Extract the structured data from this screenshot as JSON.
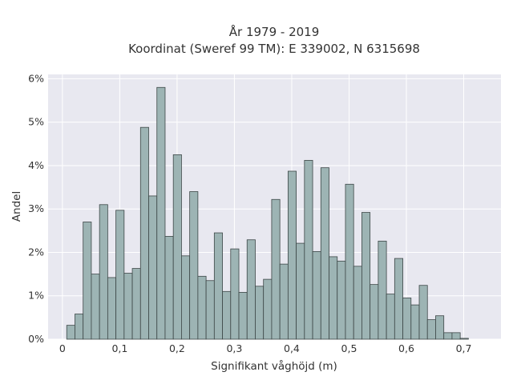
{
  "chart_data": {
    "type": "bar",
    "title": "År 1979 - 2019",
    "subtitle": "Koordinat (Sweref 99 TM): E 339002, N 6315698",
    "xlabel": "Signifikant våghöjd (m)",
    "ylabel": "Andel",
    "xlim": [
      -0.025,
      0.765
    ],
    "ylim": [
      0,
      6.1
    ],
    "bin_width": 0.0143,
    "bin_start": 0.0075,
    "x_ticks": [
      0,
      0.1,
      0.2,
      0.3,
      0.4,
      0.5,
      0.6,
      0.7
    ],
    "x_tick_labels": [
      "0",
      "0,1",
      "0,2",
      "0,3",
      "0,4",
      "0,5",
      "0,6",
      "0,7"
    ],
    "y_ticks": [
      0,
      1,
      2,
      3,
      4,
      5,
      6
    ],
    "y_tick_labels": [
      "0%",
      "1%",
      "2%",
      "3%",
      "4%",
      "5%",
      "6%"
    ],
    "values": [
      0.32,
      0.58,
      2.7,
      1.5,
      3.1,
      1.42,
      2.97,
      1.52,
      1.63,
      4.88,
      3.3,
      5.8,
      2.37,
      4.25,
      1.92,
      3.4,
      1.45,
      1.35,
      2.45,
      1.1,
      2.08,
      1.08,
      2.29,
      1.22,
      1.38,
      3.22,
      1.73,
      3.87,
      2.21,
      4.12,
      2.02,
      3.95,
      1.9,
      1.8,
      3.57,
      1.68,
      2.92,
      1.26,
      2.26,
      1.04,
      1.86,
      0.95,
      0.79,
      1.24,
      0.45,
      0.54,
      0.15,
      0.15,
      0.02
    ],
    "grid": true,
    "legend": "none",
    "colors": {
      "bar_fill": "#9db4b4",
      "bar_edge": "#3d4747",
      "plot_background": "#e8e8f0",
      "grid": "#ffffff",
      "text": "#333333"
    }
  }
}
